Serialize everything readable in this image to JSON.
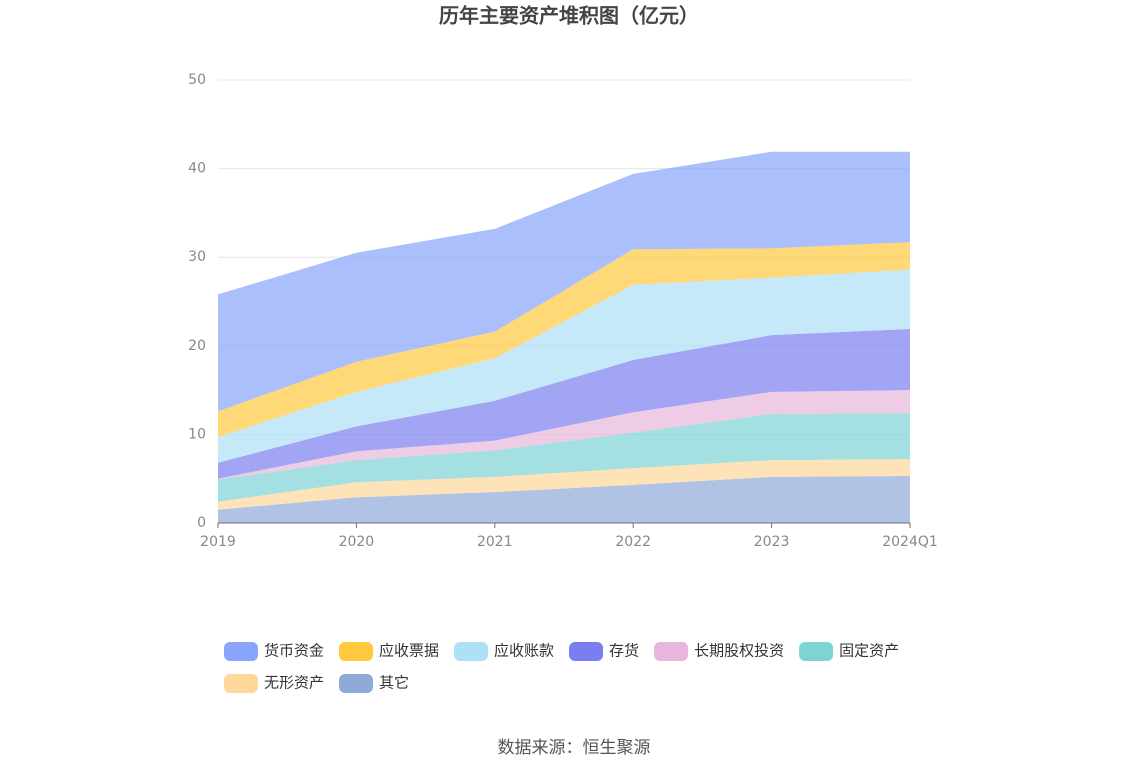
{
  "chart_data": {
    "type": "stacked-area",
    "title": "历年主要资产堆积图（亿元）",
    "categories": [
      "2019",
      "2020",
      "2021",
      "2022",
      "2023",
      "2024Q1"
    ],
    "ylim": [
      0,
      50
    ],
    "yticks": [
      0,
      10,
      20,
      30,
      40,
      50
    ],
    "grid": true,
    "series": [
      {
        "name": "货币资金",
        "color": "#88a4fb",
        "values": [
          13.2,
          12.3,
          11.6,
          8.5,
          10.9,
          10.2
        ]
      },
      {
        "name": "应收票据",
        "color": "#ffc83d",
        "values": [
          2.9,
          3.4,
          3.0,
          4.0,
          3.3,
          3.1
        ]
      },
      {
        "name": "应收账款",
        "color": "#aee0f8",
        "values": [
          2.9,
          3.9,
          4.8,
          8.5,
          6.5,
          6.7
        ]
      },
      {
        "name": "存货",
        "color": "#7b7ef0",
        "values": [
          1.8,
          2.8,
          4.5,
          5.9,
          6.4,
          6.9
        ]
      },
      {
        "name": "长期股权投资",
        "color": "#e8b6dc",
        "values": [
          0.1,
          1.0,
          1.1,
          2.3,
          2.5,
          2.6
        ]
      },
      {
        "name": "固定资产",
        "color": "#7ed3d4",
        "values": [
          2.5,
          2.5,
          3.0,
          4.0,
          5.2,
          5.2
        ]
      },
      {
        "name": "无形资产",
        "color": "#ffd79a",
        "values": [
          0.9,
          1.7,
          1.7,
          1.9,
          1.9,
          1.9
        ]
      },
      {
        "name": "其它",
        "color": "#8fa9d8",
        "values": [
          1.5,
          2.9,
          3.5,
          4.3,
          5.2,
          5.3
        ]
      }
    ],
    "source": "数据来源：恒生聚源"
  }
}
